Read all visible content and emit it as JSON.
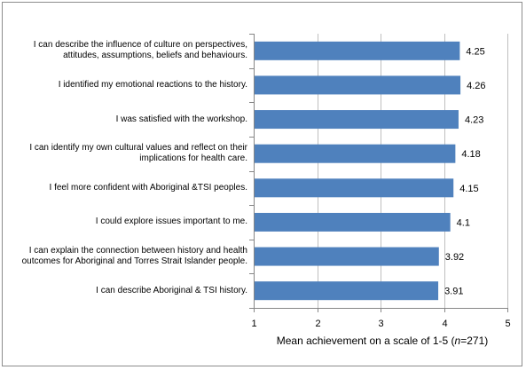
{
  "chart_data": {
    "type": "bar",
    "orientation": "horizontal",
    "categories": [
      "I can describe the influence of culture on perspectives, attitudes, assumptions, beliefs and behaviours.",
      "I identified my emotional reactions to the history.",
      "I was satisfied with the workshop.",
      "I can identify my own cultural values and reflect on their implications for health care.",
      "I feel more confident with Aboriginal &TSI peoples.",
      "I could explore issues important to me.",
      "I can explain the connection between history and health outcomes for Aboriginal and Torres Strait Islander people.",
      "I can describe Aboriginal & TSI history."
    ],
    "values": [
      4.25,
      4.26,
      4.23,
      4.18,
      4.15,
      4.1,
      3.92,
      3.91
    ],
    "value_labels": [
      "4.25",
      "4.26",
      "4.23",
      "4.18",
      "4.15",
      "4.1",
      "3.92",
      "3.91"
    ],
    "xlim": [
      1,
      5
    ],
    "xticks": [
      "1",
      "2",
      "3",
      "4",
      "5"
    ],
    "xlabel_prefix": "Mean achievement on a scale of 1-5 (",
    "xlabel_italic": "n",
    "xlabel_suffix": "=271)",
    "grid": "vertical",
    "legend": "none",
    "colors": {
      "bar": "#4f81bd",
      "grid": "#bfbfbf",
      "axis": "#868686"
    }
  }
}
